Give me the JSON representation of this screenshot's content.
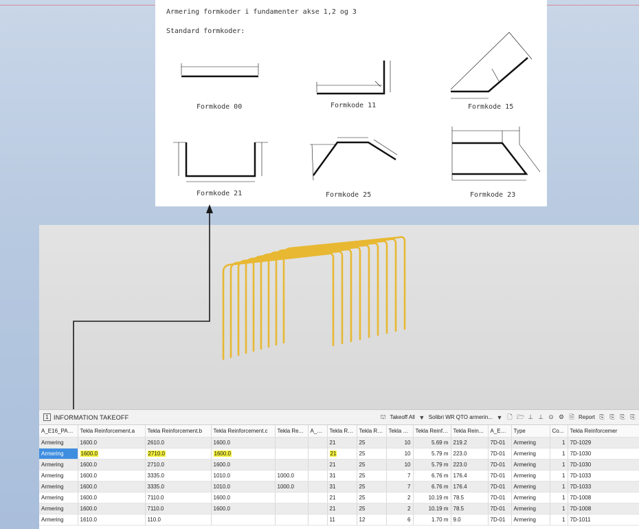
{
  "sheet": {
    "title": "Armering formkoder i fundamenter akse 1,2 og 3",
    "subtitle": "Standard formkoder:",
    "shapes": [
      {
        "label": "Formkode 00"
      },
      {
        "label": "Formkode 11"
      },
      {
        "label": "Formkode 15"
      },
      {
        "label": "Formkode 21"
      },
      {
        "label": "Formkode 25"
      },
      {
        "label": "Formkode 23"
      }
    ]
  },
  "colors": {
    "rebar": "#e8b832",
    "selection": "#3f8ee0",
    "highlight": "#f4f03a"
  },
  "takeoff": {
    "panel_number": "1",
    "panel_title": "INFORMATION TAKEOFF",
    "toolbar": {
      "takeoff_all": "Takeoff All",
      "ruleset": "Solibri WR QTO armerin...",
      "report": "Report"
    },
    "columns": [
      "A_E16_PAR...",
      "Tekla Reinforcement.a",
      "Tekla Reinforcement.b",
      "Tekla Reinforcement.c",
      "Tekla Re...",
      "A_E...",
      "Tekla Re...",
      "Tekla Rei...",
      "Tekla R...",
      "Tekla Reinfor...",
      "Tekla Rein...",
      "A_E16...",
      "Type",
      "Co...",
      "Tekla Reinforcemer"
    ],
    "rows": [
      [
        "Armering",
        "1600.0",
        "2610.0",
        "1600.0",
        "",
        "",
        "21",
        "25",
        "10",
        "5.69 m",
        "219.2",
        "7D-01",
        "Armering",
        "1",
        "7D-1029"
      ],
      [
        "Armering",
        "1600.0",
        "2710.0",
        "1600.0",
        "",
        "",
        "21",
        "25",
        "10",
        "5.79 m",
        "223.0",
        "7D-01",
        "Armering",
        "1",
        "7D-1030"
      ],
      [
        "Armering",
        "1600.0",
        "2710.0",
        "1600.0",
        "",
        "",
        "21",
        "25",
        "10",
        "5.79 m",
        "223.0",
        "7D-01",
        "Armering",
        "1",
        "7D-1030"
      ],
      [
        "Armering",
        "1600.0",
        "3335.0",
        "1010.0",
        "1000.0",
        "",
        "31",
        "25",
        "7",
        "6.76 m",
        "176.4",
        "7D-01",
        "Armering",
        "1",
        "7D-1033"
      ],
      [
        "Armering",
        "1600.0",
        "3335.0",
        "1010.0",
        "1000.0",
        "",
        "31",
        "25",
        "7",
        "6.76 m",
        "176.4",
        "7D-01",
        "Armering",
        "1",
        "7D-1033"
      ],
      [
        "Armering",
        "1600.0",
        "7110.0",
        "1600.0",
        "",
        "",
        "21",
        "25",
        "2",
        "10.19 m",
        "78.5",
        "7D-01",
        "Armering",
        "1",
        "7D-1008"
      ],
      [
        "Armering",
        "1600.0",
        "7110.0",
        "1600.0",
        "",
        "",
        "21",
        "25",
        "2",
        "10.19 m",
        "78.5",
        "7D-01",
        "Armering",
        "1",
        "7D-1008"
      ],
      [
        "Armering",
        "1610.0",
        "110.0",
        "",
        "",
        "",
        "11",
        "12",
        "6",
        "1.70 m",
        "9.0",
        "7D-01",
        "Armering",
        "1",
        "7D-1011"
      ]
    ]
  }
}
